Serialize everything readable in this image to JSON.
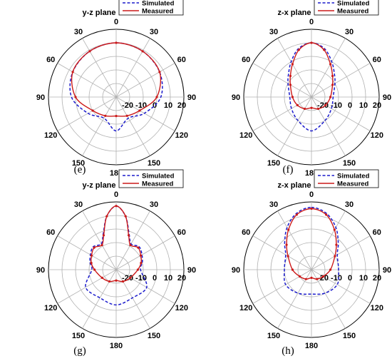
{
  "chart_data": [
    {
      "type": "polar-line",
      "panel_label": "(e)",
      "title": "y-z plane",
      "angle_ticks": [
        "0",
        "30",
        "60",
        "90",
        "120",
        "150",
        "180",
        "150",
        "120",
        "90",
        "60",
        "30"
      ],
      "radial_ticks": [
        "-20",
        "-10",
        "0",
        "10",
        "20"
      ],
      "rlim": [
        -30,
        20
      ],
      "legend": [
        "Simulated",
        "Measured"
      ],
      "legend_position": "top-right",
      "colors": {
        "simulated": "#1a1acc",
        "measured": "#cc1a1a"
      },
      "series": [
        {
          "name": "Simulated",
          "style": "dashed",
          "theta": [
            0,
            30,
            60,
            90,
            120,
            150,
            180,
            210,
            240,
            270,
            300,
            330
          ],
          "r": [
            10,
            9,
            7,
            3,
            -6,
            -12,
            -5,
            -12,
            -6,
            3,
            7,
            9
          ]
        },
        {
          "name": "Measured",
          "style": "solid",
          "theta": [
            0,
            30,
            60,
            90,
            120,
            150,
            180,
            210,
            240,
            270,
            300,
            330
          ],
          "r": [
            10,
            9,
            7,
            0,
            -10,
            -14,
            -16,
            -14,
            -10,
            0,
            7,
            9
          ]
        }
      ]
    },
    {
      "type": "polar-line",
      "panel_label": "(f)",
      "title": "z-x plane",
      "angle_ticks": [
        "0",
        "30",
        "60",
        "90",
        "120",
        "150",
        "180",
        "150",
        "120",
        "90",
        "60",
        "30"
      ],
      "radial_ticks": [
        "-20",
        "-10",
        "0",
        "10",
        "20"
      ],
      "rlim": [
        -30,
        20
      ],
      "legend": [
        "Simulated",
        "Measured"
      ],
      "legend_position": "top-right",
      "colors": {
        "simulated": "#1a1acc",
        "measured": "#cc1a1a"
      },
      "series": [
        {
          "name": "Simulated",
          "style": "dashed",
          "theta": [
            0,
            15,
            30,
            45,
            60,
            90,
            120,
            150,
            180,
            210,
            240,
            270,
            300,
            315,
            330,
            345
          ],
          "r": [
            10,
            7,
            0,
            -6,
            -10,
            -14,
            -13,
            -10,
            -5,
            -10,
            -13,
            -14,
            -10,
            -6,
            0,
            7
          ]
        },
        {
          "name": "Measured",
          "style": "solid",
          "theta": [
            0,
            15,
            30,
            45,
            60,
            90,
            120,
            150,
            180,
            210,
            240,
            270,
            300,
            315,
            330,
            345
          ],
          "r": [
            10,
            6,
            -2,
            -8,
            -12,
            -16,
            -18,
            -20,
            -22,
            -20,
            -18,
            -16,
            -12,
            -8,
            -2,
            6
          ]
        }
      ]
    },
    {
      "type": "polar-line",
      "panel_label": "(g)",
      "title": "y-z plane",
      "angle_ticks": [
        "0",
        "30",
        "60",
        "90",
        "120",
        "150",
        "180",
        "150",
        "120",
        "90",
        "60",
        "30"
      ],
      "radial_ticks": [
        "-20",
        "-10",
        "0",
        "10",
        "20"
      ],
      "rlim": [
        -30,
        20
      ],
      "legend": [
        "Simulated",
        "Measured"
      ],
      "legend_position": "top-right",
      "colors": {
        "simulated": "#1a1acc",
        "measured": "#cc1a1a"
      },
      "series": [
        {
          "name": "Simulated",
          "style": "dashed",
          "theta": [
            0,
            10,
            20,
            30,
            45,
            60,
            75,
            90,
            120,
            150,
            180,
            210,
            240,
            270,
            285,
            300,
            315,
            330,
            340,
            350
          ],
          "r": [
            17,
            10,
            -2,
            -8,
            -6,
            -8,
            -10,
            -12,
            -4,
            -6,
            -4,
            -6,
            -4,
            -12,
            -10,
            -8,
            -6,
            -8,
            -2,
            10
          ]
        },
        {
          "name": "Measured",
          "style": "solid",
          "theta": [
            0,
            10,
            20,
            30,
            45,
            60,
            75,
            90,
            120,
            150,
            180,
            210,
            240,
            270,
            285,
            300,
            315,
            330,
            340,
            350
          ],
          "r": [
            17,
            10,
            -3,
            -9,
            -7,
            -9,
            -11,
            -14,
            -18,
            -20,
            -22,
            -20,
            -18,
            -14,
            -11,
            -9,
            -7,
            -9,
            -3,
            10
          ]
        }
      ]
    },
    {
      "type": "polar-line",
      "panel_label": "(h)",
      "title": "z-x plane",
      "angle_ticks": [
        "0",
        "30",
        "60",
        "90",
        "120",
        "150",
        "180",
        "150",
        "120",
        "90",
        "60",
        "30"
      ],
      "radial_ticks": [
        "-20",
        "-10",
        "0",
        "10",
        "20"
      ],
      "rlim": [
        -30,
        20
      ],
      "legend": [
        "Simulated",
        "Measured"
      ],
      "legend_position": "top-right",
      "colors": {
        "simulated": "#1a1acc",
        "measured": "#cc1a1a"
      },
      "series": [
        {
          "name": "Simulated",
          "style": "dashed",
          "theta": [
            0,
            15,
            30,
            45,
            60,
            90,
            120,
            150,
            180,
            210,
            240,
            270,
            300,
            315,
            330,
            345
          ],
          "r": [
            16,
            13,
            6,
            -2,
            -8,
            -10,
            -8,
            -10,
            -12,
            -10,
            -8,
            -10,
            -8,
            -2,
            6,
            13
          ]
        },
        {
          "name": "Measured",
          "style": "solid",
          "theta": [
            0,
            15,
            30,
            45,
            60,
            90,
            120,
            150,
            180,
            210,
            240,
            270,
            300,
            315,
            330,
            345
          ],
          "r": [
            15,
            12,
            4,
            -4,
            -10,
            -16,
            -20,
            -22,
            -24,
            -22,
            -20,
            -16,
            -10,
            -4,
            4,
            12
          ]
        }
      ]
    }
  ]
}
